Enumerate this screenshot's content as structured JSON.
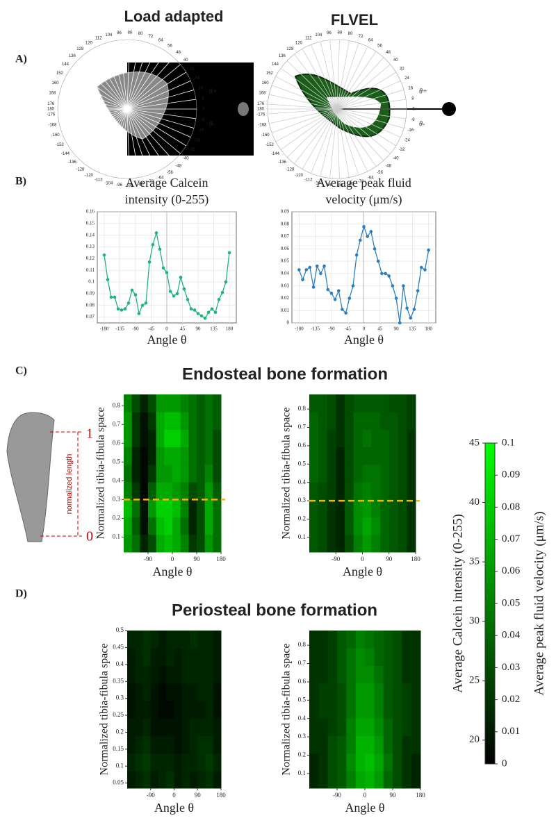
{
  "column_titles": [
    "Load adapted",
    "FLVEL"
  ],
  "panels": {
    "A": "A)",
    "B": "B)",
    "C": "C)",
    "D": "D)"
  },
  "polar": {
    "angle_labels": [
      0,
      8,
      16,
      24,
      32,
      40,
      48,
      56,
      64,
      72,
      80,
      88,
      96,
      104,
      112,
      120,
      128,
      136,
      144,
      152,
      160,
      168,
      176,
      180,
      -176,
      -168,
      -160,
      -152,
      -144,
      -136,
      -128,
      -120,
      -112,
      -104,
      -96,
      -88,
      -80,
      -72,
      -64,
      -56,
      -48,
      -40,
      -32,
      -24,
      -16,
      -8
    ],
    "theta_plus": "θ+",
    "theta_minus": "θ-"
  },
  "section_titles": [
    "Endosteal bone formation",
    "Periosteal bone formation"
  ],
  "bone_diagram": {
    "label": "normalized length",
    "top": "1",
    "bottom": "0"
  },
  "chart_data": [
    {
      "type": "line",
      "title": [
        "Average Calcein",
        "intensity (0-255)"
      ],
      "xlabel": "Angle θ",
      "color": "#1fb57a",
      "x": [
        -180,
        -170,
        -160,
        -150,
        -140,
        -130,
        -120,
        -110,
        -100,
        -90,
        -80,
        -70,
        -60,
        -50,
        -40,
        -30,
        -20,
        -10,
        0,
        10,
        20,
        30,
        40,
        50,
        60,
        70,
        80,
        90,
        100,
        110,
        120,
        130,
        140,
        150,
        160,
        170,
        180
      ],
      "values": [
        0.123,
        0.102,
        0.087,
        0.087,
        0.077,
        0.076,
        0.077,
        0.082,
        0.093,
        0.089,
        0.073,
        0.08,
        0.082,
        0.117,
        0.132,
        0.142,
        0.128,
        0.112,
        0.108,
        0.092,
        0.088,
        0.09,
        0.104,
        0.094,
        0.085,
        0.077,
        0.076,
        0.073,
        0.071,
        0.069,
        0.074,
        0.077,
        0.074,
        0.085,
        0.091,
        0.1,
        0.125
      ],
      "xlim": [
        -200,
        200
      ],
      "xticks": [
        -180,
        -135,
        -90,
        -45,
        0,
        45,
        90,
        135,
        180
      ],
      "ylim": [
        0.065,
        0.16
      ],
      "yticks": [
        0.07,
        0.08,
        0.09,
        0.1,
        0.11,
        0.12,
        0.13,
        0.14,
        0.15,
        0.16
      ],
      "grid": true
    },
    {
      "type": "line",
      "title": [
        "Average peak fluid",
        "velocity (μm/s)"
      ],
      "xlabel": "Angle θ",
      "color": "#2a7fc0",
      "x": [
        -180,
        -170,
        -160,
        -150,
        -140,
        -130,
        -120,
        -110,
        -100,
        -90,
        -80,
        -70,
        -60,
        -50,
        -40,
        -30,
        -20,
        -10,
        0,
        10,
        20,
        30,
        40,
        50,
        60,
        70,
        80,
        90,
        100,
        110,
        120,
        130,
        140,
        150,
        160,
        170,
        180
      ],
      "values": [
        0.043,
        0.035,
        0.043,
        0.045,
        0.029,
        0.046,
        0.04,
        0.046,
        0.027,
        0.024,
        0.019,
        0.026,
        0.011,
        0.008,
        0.02,
        0.03,
        0.055,
        0.067,
        0.078,
        0.07,
        0.074,
        0.06,
        0.05,
        0.04,
        0.04,
        0.038,
        0.03,
        0.02,
        0.0,
        0.03,
        0.012,
        0.004,
        0.011,
        0.026,
        0.045,
        0.043,
        0.059
      ],
      "xlim": [
        -200,
        200
      ],
      "xticks": [
        -180,
        -135,
        -90,
        -45,
        0,
        45,
        90,
        135,
        180
      ],
      "ylim": [
        0,
        0.09
      ],
      "yticks": [
        0,
        0.01,
        0.02,
        0.03,
        0.04,
        0.05,
        0.06,
        0.07,
        0.08,
        0.09
      ],
      "grid": true
    },
    {
      "type": "heatmap",
      "xlabel": "Angle θ",
      "ylabel": "Normalized tibia-fibula space",
      "zlim": [
        18,
        45
      ],
      "reference_line": 0.3,
      "xlim": [
        -180,
        180
      ],
      "xticks": [
        -90,
        0,
        90,
        180
      ],
      "ylim": [
        0.02,
        0.86
      ],
      "yticks": [
        0.1,
        0.2,
        0.3,
        0.4,
        0.5,
        0.6,
        0.7,
        0.8
      ],
      "z": [
        [
          34,
          30,
          22,
          26,
          36,
          38,
          36,
          32,
          24,
          26,
          34,
          30
        ],
        [
          36,
          28,
          20,
          30,
          38,
          40,
          36,
          30,
          22,
          26,
          36,
          30
        ],
        [
          38,
          30,
          20,
          34,
          40,
          40,
          38,
          32,
          22,
          26,
          36,
          30
        ],
        [
          32,
          24,
          19,
          28,
          36,
          36,
          34,
          32,
          26,
          28,
          34,
          28
        ],
        [
          30,
          22,
          19,
          24,
          34,
          34,
          36,
          34,
          30,
          28,
          32,
          26
        ],
        [
          32,
          22,
          19,
          22,
          34,
          36,
          36,
          34,
          30,
          28,
          30,
          26
        ],
        [
          34,
          24,
          20,
          22,
          36,
          40,
          40,
          36,
          30,
          28,
          30,
          26
        ],
        [
          34,
          24,
          20,
          24,
          36,
          38,
          38,
          34,
          30,
          28,
          30,
          28
        ],
        [
          32,
          26,
          22,
          26,
          34,
          34,
          34,
          32,
          30,
          28,
          30,
          28
        ]
      ]
    },
    {
      "type": "heatmap",
      "xlabel": "Angle θ",
      "ylabel": "Normalized tibia-fibula space",
      "zlim": [
        0,
        0.1
      ],
      "reference_line": 0.3,
      "xlim": [
        -180,
        180
      ],
      "xticks": [
        -90,
        0,
        90,
        180
      ],
      "ylim": [
        0.02,
        0.88
      ],
      "yticks": [
        0.1,
        0.2,
        0.3,
        0.4,
        0.5,
        0.6,
        0.7,
        0.8
      ],
      "z": [
        [
          0.035,
          0.03,
          0.02,
          0.015,
          0.03,
          0.05,
          0.06,
          0.05,
          0.04,
          0.035,
          0.03,
          0.02
        ],
        [
          0.035,
          0.03,
          0.02,
          0.015,
          0.035,
          0.055,
          0.065,
          0.055,
          0.04,
          0.035,
          0.03,
          0.02
        ],
        [
          0.035,
          0.03,
          0.02,
          0.015,
          0.035,
          0.055,
          0.06,
          0.05,
          0.04,
          0.035,
          0.03,
          0.02
        ],
        [
          0.035,
          0.03,
          0.025,
          0.015,
          0.03,
          0.045,
          0.05,
          0.045,
          0.04,
          0.035,
          0.03,
          0.02
        ],
        [
          0.04,
          0.035,
          0.025,
          0.015,
          0.03,
          0.04,
          0.045,
          0.045,
          0.04,
          0.035,
          0.03,
          0.02
        ],
        [
          0.04,
          0.035,
          0.025,
          0.015,
          0.03,
          0.04,
          0.04,
          0.04,
          0.04,
          0.035,
          0.03,
          0.02
        ],
        [
          0.04,
          0.035,
          0.025,
          0.02,
          0.03,
          0.04,
          0.045,
          0.04,
          0.04,
          0.035,
          0.03,
          0.02
        ],
        [
          0.04,
          0.035,
          0.03,
          0.02,
          0.03,
          0.04,
          0.04,
          0.04,
          0.035,
          0.035,
          0.03,
          0.025
        ],
        [
          0.035,
          0.035,
          0.03,
          0.02,
          0.03,
          0.035,
          0.035,
          0.035,
          0.035,
          0.03,
          0.03,
          0.025
        ]
      ]
    },
    {
      "type": "heatmap",
      "xlabel": "Angle θ",
      "ylabel": "Normalized tibia-fibula space",
      "zlim": [
        18,
        45
      ],
      "xlim": [
        -180,
        180
      ],
      "xticks": [
        -90,
        0,
        90,
        180
      ],
      "ylim": [
        0.035,
        0.5
      ],
      "yticks": [
        0.05,
        0.1,
        0.15,
        0.2,
        0.25,
        0.3,
        0.35,
        0.4,
        0.45,
        0.5
      ],
      "z": [
        [
          21,
          22,
          23,
          21,
          22,
          23,
          21,
          22,
          21,
          22,
          23,
          21
        ],
        [
          22,
          23,
          24,
          22,
          22,
          22,
          21,
          22,
          22,
          23,
          24,
          22
        ],
        [
          21,
          22,
          23,
          21,
          21,
          21,
          20,
          21,
          22,
          23,
          23,
          21
        ],
        [
          21,
          21,
          22,
          20,
          20,
          20,
          20,
          21,
          22,
          22,
          22,
          21
        ],
        [
          20,
          21,
          21,
          20,
          19,
          19,
          20,
          21,
          21,
          21,
          22,
          20
        ],
        [
          20,
          21,
          22,
          20,
          19,
          20,
          20,
          21,
          21,
          22,
          22,
          20
        ],
        [
          21,
          22,
          22,
          21,
          20,
          21,
          21,
          22,
          22,
          22,
          22,
          21
        ],
        [
          21,
          22,
          23,
          21,
          21,
          22,
          21,
          22,
          22,
          22,
          22,
          21
        ],
        [
          22,
          22,
          23,
          22,
          21,
          22,
          22,
          22,
          23,
          22,
          22,
          21
        ]
      ]
    },
    {
      "type": "heatmap",
      "xlabel": "Angle θ",
      "ylabel": "Normalized tibia-fibula space",
      "zlim": [
        0,
        0.1
      ],
      "xlim": [
        -180,
        180
      ],
      "xticks": [
        -90,
        0,
        90,
        180
      ],
      "ylim": [
        0.02,
        0.88
      ],
      "yticks": [
        0.1,
        0.2,
        0.3,
        0.4,
        0.5,
        0.6,
        0.7,
        0.8
      ],
      "z": [
        [
          0.015,
          0.02,
          0.03,
          0.035,
          0.05,
          0.065,
          0.07,
          0.06,
          0.04,
          0.03,
          0.02,
          0.015
        ],
        [
          0.015,
          0.02,
          0.03,
          0.035,
          0.055,
          0.07,
          0.075,
          0.065,
          0.045,
          0.03,
          0.02,
          0.015
        ],
        [
          0.02,
          0.02,
          0.03,
          0.035,
          0.05,
          0.07,
          0.07,
          0.06,
          0.04,
          0.03,
          0.02,
          0.02
        ],
        [
          0.02,
          0.02,
          0.025,
          0.03,
          0.05,
          0.065,
          0.065,
          0.055,
          0.04,
          0.03,
          0.025,
          0.02
        ],
        [
          0.02,
          0.025,
          0.025,
          0.03,
          0.045,
          0.06,
          0.06,
          0.05,
          0.035,
          0.03,
          0.025,
          0.02
        ],
        [
          0.02,
          0.025,
          0.025,
          0.03,
          0.045,
          0.06,
          0.06,
          0.05,
          0.035,
          0.03,
          0.025,
          0.02
        ],
        [
          0.02,
          0.02,
          0.025,
          0.035,
          0.045,
          0.055,
          0.055,
          0.045,
          0.035,
          0.03,
          0.02,
          0.02
        ],
        [
          0.02,
          0.02,
          0.025,
          0.035,
          0.045,
          0.055,
          0.05,
          0.04,
          0.035,
          0.03,
          0.02,
          0.02
        ],
        [
          0.02,
          0.02,
          0.025,
          0.035,
          0.04,
          0.05,
          0.045,
          0.04,
          0.035,
          0.03,
          0.02,
          0.02
        ]
      ]
    }
  ],
  "colorbar": {
    "left_label": "Average Calcein intensity (0-255)",
    "right_label": "Average peak fluid velocity (μm/s)",
    "left_lim": [
      18,
      45
    ],
    "left_ticks": [
      20,
      25,
      30,
      35,
      40,
      45
    ],
    "right_lim": [
      0,
      0.1
    ],
    "right_ticks": [
      0,
      0.01,
      0.02,
      0.03,
      0.04,
      0.05,
      0.06,
      0.07,
      0.08,
      0.09,
      0.1
    ]
  }
}
